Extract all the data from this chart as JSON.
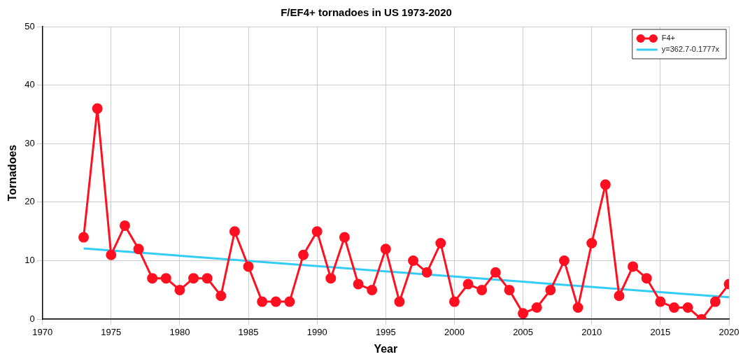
{
  "chart_data": {
    "type": "line",
    "title": "F/EF4+ tornadoes in US 1973-2020",
    "xlabel": "Year",
    "ylabel": "Tornadoes",
    "x": [
      1973,
      1974,
      1975,
      1976,
      1977,
      1978,
      1979,
      1980,
      1981,
      1982,
      1983,
      1984,
      1985,
      1986,
      1987,
      1988,
      1989,
      1990,
      1991,
      1992,
      1993,
      1994,
      1995,
      1996,
      1997,
      1998,
      1999,
      2000,
      2001,
      2002,
      2003,
      2004,
      2005,
      2006,
      2007,
      2008,
      2009,
      2010,
      2011,
      2012,
      2013,
      2014,
      2015,
      2016,
      2017,
      2018,
      2019,
      2020
    ],
    "series": [
      {
        "name": "F4+",
        "color": "#ff1020",
        "marker": "circle",
        "values": [
          14,
          36,
          11,
          16,
          12,
          7,
          7,
          5,
          7,
          7,
          4,
          15,
          9,
          3,
          3,
          3,
          11,
          15,
          7,
          14,
          6,
          5,
          12,
          3,
          10,
          8,
          13,
          3,
          6,
          5,
          8,
          5,
          1,
          2,
          5,
          10,
          2,
          13,
          23,
          4,
          9,
          7,
          3,
          2,
          2,
          0,
          3,
          6
        ]
      },
      {
        "name": "y=362.7-0.1777x",
        "type": "line",
        "color": "#33ccf5",
        "marker": "none",
        "x": [
          1973,
          2020
        ],
        "values": [
          12.1,
          3.75
        ]
      }
    ],
    "xlim": [
      1970,
      2020
    ],
    "xticks": [
      1970,
      1975,
      1980,
      1985,
      1990,
      1995,
      2000,
      2005,
      2010,
      2015,
      2020
    ],
    "ylim": [
      0,
      50
    ],
    "yticks": [
      0,
      10,
      20,
      30,
      40,
      50
    ],
    "grid": true,
    "legend": "top right"
  }
}
